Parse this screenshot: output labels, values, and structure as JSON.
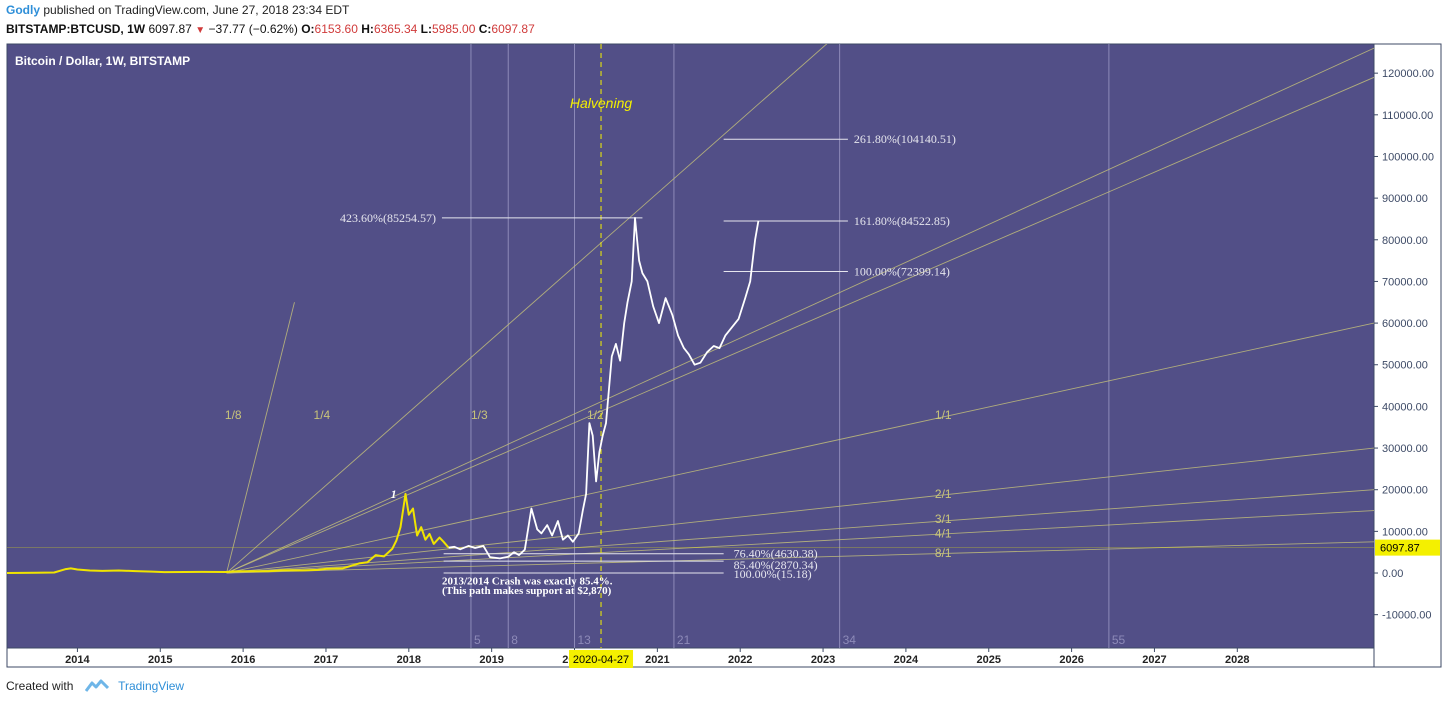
{
  "header": {
    "author": "Godly",
    "published": "published on TradingView.com, June 27, 2018 23:34 EDT",
    "symbol": "BITSTAMP:BTCUSD, 1W",
    "last": "6097.87",
    "change": "−37.77 (−0.62%)",
    "open_label": "O:",
    "open": "6153.60",
    "high_label": "H:",
    "high": "6365.34",
    "low_label": "L:",
    "low": "5985.00",
    "close_label": "C:",
    "close": "6097.87"
  },
  "footer": {
    "created_with": "Created with",
    "brand": "TradingView"
  },
  "colors": {
    "plot_bg": "#524f87",
    "fan": "#c8c47a",
    "price_white": "#ffffff",
    "price_yellow": "#f0e400",
    "level_line": "#e6e6ee",
    "axis_text": "#3d4a66",
    "marker_bg": "#f4f000"
  },
  "chart_data": {
    "type": "line",
    "title": "Bitcoin / Dollar, 1W, BITSTAMP",
    "xlabel": "",
    "ylabel": "",
    "ylim": [
      -18000,
      127000
    ],
    "xlim": [
      2013.15,
      2029.65
    ],
    "x_ticks": [
      "2014",
      "2015",
      "2016",
      "2017",
      "2018",
      "2019",
      "2020",
      "2021",
      "2022",
      "2023",
      "2024",
      "2025",
      "2026",
      "2027",
      "2028"
    ],
    "y_ticks": [
      -10000,
      0,
      10000,
      20000,
      30000,
      40000,
      50000,
      60000,
      70000,
      80000,
      90000,
      100000,
      110000,
      120000
    ],
    "y_tick_labels": [
      "-10000.00",
      "0.00",
      "10000.00",
      "20000.00",
      "30000.00",
      "40000.00",
      "50000.00",
      "60000.00",
      "70000.00",
      "80000.00",
      "90000.00",
      "100000.00",
      "110000.00",
      "120000.00"
    ],
    "last_price": 6097.87,
    "last_price_label": "6097.87",
    "date_marker": {
      "x": 2020.32,
      "label": "2020-04-27"
    },
    "halvening": {
      "x": 2020.32,
      "label": "Halvening"
    },
    "series": [
      {
        "style": "historical",
        "points": [
          [
            2013.15,
            0
          ],
          [
            2013.5,
            70
          ],
          [
            2013.72,
            120
          ],
          [
            2013.85,
            900
          ],
          [
            2013.92,
            1100
          ],
          [
            2014.0,
            850
          ],
          [
            2014.15,
            600
          ],
          [
            2014.3,
            500
          ],
          [
            2014.5,
            600
          ],
          [
            2014.7,
            450
          ],
          [
            2014.9,
            350
          ],
          [
            2015.05,
            230
          ],
          [
            2015.3,
            240
          ],
          [
            2015.5,
            270
          ],
          [
            2015.8,
            250
          ],
          [
            2015.9,
            380
          ],
          [
            2016.0,
            430
          ],
          [
            2016.3,
            420
          ],
          [
            2016.5,
            680
          ],
          [
            2016.7,
            610
          ],
          [
            2016.9,
            760
          ],
          [
            2017.0,
            1000
          ],
          [
            2017.2,
            1100
          ],
          [
            2017.4,
            2300
          ],
          [
            2017.5,
            2600
          ],
          [
            2017.6,
            4300
          ],
          [
            2017.7,
            4000
          ],
          [
            2017.8,
            5800
          ],
          [
            2017.85,
            7800
          ],
          [
            2017.9,
            11000
          ],
          [
            2017.96,
            19000
          ],
          [
            2018.0,
            14000
          ],
          [
            2018.05,
            15500
          ],
          [
            2018.1,
            9000
          ],
          [
            2018.15,
            11000
          ],
          [
            2018.2,
            8000
          ],
          [
            2018.25,
            9400
          ],
          [
            2018.3,
            7000
          ],
          [
            2018.37,
            8500
          ],
          [
            2018.42,
            7500
          ],
          [
            2018.48,
            6097.87
          ]
        ]
      },
      {
        "style": "projection",
        "points": [
          [
            2018.48,
            6097.87
          ],
          [
            2018.55,
            6300
          ],
          [
            2018.62,
            5700
          ],
          [
            2018.72,
            6500
          ],
          [
            2018.8,
            6000
          ],
          [
            2018.9,
            6500
          ],
          [
            2018.98,
            3800
          ],
          [
            2019.1,
            3500
          ],
          [
            2019.2,
            3900
          ],
          [
            2019.27,
            5000
          ],
          [
            2019.33,
            4300
          ],
          [
            2019.4,
            5600
          ],
          [
            2019.48,
            15500
          ],
          [
            2019.55,
            10500
          ],
          [
            2019.6,
            9500
          ],
          [
            2019.67,
            11500
          ],
          [
            2019.73,
            9000
          ],
          [
            2019.8,
            12500
          ],
          [
            2019.86,
            8000
          ],
          [
            2019.92,
            9000
          ],
          [
            2019.98,
            7500
          ],
          [
            2020.05,
            9500
          ],
          [
            2020.1,
            15000
          ],
          [
            2020.14,
            19000
          ],
          [
            2020.18,
            36000
          ],
          [
            2020.22,
            33000
          ],
          [
            2020.26,
            22000
          ],
          [
            2020.3,
            29000
          ],
          [
            2020.34,
            33000
          ],
          [
            2020.38,
            36000
          ],
          [
            2020.45,
            52000
          ],
          [
            2020.5,
            55000
          ],
          [
            2020.55,
            51000
          ],
          [
            2020.6,
            60000
          ],
          [
            2020.64,
            65000
          ],
          [
            2020.69,
            70000
          ],
          [
            2020.73,
            85254
          ],
          [
            2020.78,
            75000
          ],
          [
            2020.82,
            72000
          ],
          [
            2020.88,
            70000
          ],
          [
            2020.95,
            64000
          ],
          [
            2021.02,
            60000
          ],
          [
            2021.1,
            66000
          ],
          [
            2021.18,
            62000
          ],
          [
            2021.25,
            57000
          ],
          [
            2021.32,
            54000
          ],
          [
            2021.38,
            52500
          ],
          [
            2021.45,
            50000
          ],
          [
            2021.52,
            50500
          ],
          [
            2021.6,
            53000
          ],
          [
            2021.68,
            54500
          ],
          [
            2021.75,
            54000
          ],
          [
            2021.82,
            57000
          ],
          [
            2021.9,
            59000
          ],
          [
            2021.98,
            61000
          ],
          [
            2022.06,
            66000
          ],
          [
            2022.12,
            70000
          ],
          [
            2022.18,
            80000
          ],
          [
            2022.22,
            84522.85
          ]
        ]
      }
    ],
    "gann_fan": {
      "origin": [
        2015.8,
        0
      ],
      "lines": [
        {
          "label": "1/8",
          "end": [
            2016.62,
            65000
          ],
          "label_at": [
            2015.78,
            37000
          ]
        },
        {
          "label": "1/4",
          "end": [
            2023.1,
            128000
          ],
          "label_at": [
            2016.85,
            37000
          ]
        },
        {
          "label": "1/3",
          "end": [
            2029.65,
            126000
          ],
          "label_at": [
            2018.75,
            37000
          ]
        },
        {
          "label": "1/2",
          "end": [
            2029.65,
            119000
          ],
          "label_at": [
            2020.15,
            37000
          ]
        },
        {
          "label": "1/1",
          "end": [
            2029.65,
            60000
          ],
          "label_at": [
            2024.35,
            37000
          ]
        },
        {
          "label": "2/1",
          "end": [
            2029.65,
            30000
          ],
          "label_at": [
            2024.35,
            18000
          ]
        },
        {
          "label": "3/1",
          "end": [
            2029.65,
            20000
          ],
          "label_at": [
            2024.35,
            12000
          ]
        },
        {
          "label": "4/1",
          "end": [
            2029.65,
            15000
          ],
          "label_at": [
            2024.35,
            8500
          ]
        },
        {
          "label": "8/1",
          "end": [
            2029.65,
            7500
          ],
          "label_at": [
            2024.35,
            3800
          ]
        }
      ]
    },
    "fib_time_lines": [
      {
        "label": "5",
        "x": 2018.75
      },
      {
        "label": "8",
        "x": 2019.2
      },
      {
        "label": "13",
        "x": 2020.0
      },
      {
        "label": "21",
        "x": 2021.2
      },
      {
        "label": "34",
        "x": 2023.2
      },
      {
        "label": "55",
        "x": 2026.45
      }
    ],
    "extension_levels": [
      {
        "label": "261.80%(104140.51)",
        "y": 104140.51,
        "x0": 2021.8,
        "x1": 2023.3
      },
      {
        "label": "161.80%(84522.85)",
        "y": 84522.85,
        "x0": 2021.8,
        "x1": 2023.3
      },
      {
        "label": "100.00%(72399.14)",
        "y": 72399.14,
        "x0": 2021.8,
        "x1": 2023.3
      }
    ],
    "peak_level": {
      "label": "423.60%(85254.57)",
      "y": 85254.57,
      "x0": 2018.4,
      "x1": 2020.82
    },
    "retracement_levels": [
      {
        "label": "76.40%(4630.38)",
        "y": 4630.38,
        "x0": 2018.42,
        "x1": 2021.8
      },
      {
        "label": "85.40%(2870.34)",
        "y": 2870.34,
        "x0": 2018.42,
        "x1": 2021.8
      },
      {
        "label": "100.00%(15.18)",
        "y": 15.18,
        "x0": 2018.42,
        "x1": 2021.8
      }
    ],
    "annotations": [
      {
        "text": "1",
        "x": 2017.78,
        "y": 18000
      },
      {
        "text": "2013/2014 Crash was exactly 85.4%.",
        "x": 2018.4,
        "y": -2800
      },
      {
        "text": "(This path makes support at $2,870)",
        "x": 2018.4,
        "y": -5000
      }
    ]
  }
}
